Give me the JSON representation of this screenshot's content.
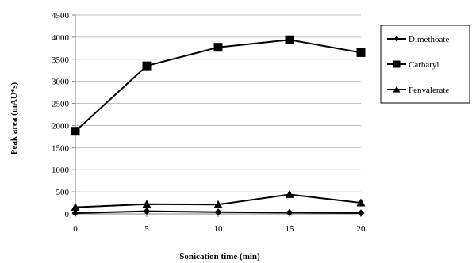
{
  "chart_data": {
    "type": "line",
    "xlabel": "Sonication time (min)",
    "ylabel": "Peak area  (mAU*s)",
    "x": [
      0,
      5,
      10,
      15,
      20
    ],
    "xlim": [
      0,
      20
    ],
    "ylim": [
      0,
      4500
    ],
    "yticks": [
      0,
      500,
      1000,
      1500,
      2000,
      2500,
      3000,
      3500,
      4000,
      4500
    ],
    "grid": "horizontal",
    "legend_position": "right",
    "series": [
      {
        "name": "Dimethoate",
        "marker": "diamond",
        "values": [
          20,
          60,
          40,
          30,
          20
        ]
      },
      {
        "name": "Carbaryl",
        "marker": "square",
        "values": [
          1870,
          3350,
          3770,
          3940,
          3650
        ]
      },
      {
        "name": "Fenvalerate",
        "marker": "triangle",
        "values": [
          150,
          220,
          210,
          440,
          250
        ]
      }
    ],
    "colors": {
      "line": "#000000",
      "grid": "#bfbfbf"
    }
  }
}
